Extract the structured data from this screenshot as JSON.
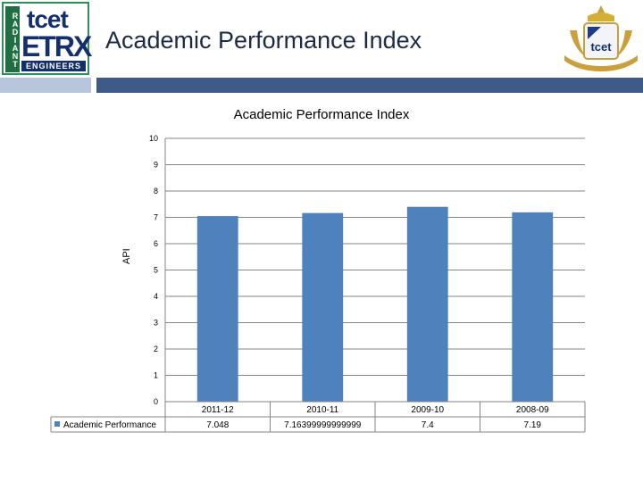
{
  "header": {
    "title": "Academic Performance Index",
    "logo_left": {
      "vertical_text": "RADIANT",
      "brand": "tcet",
      "dept": "ETRX",
      "tagline": "ENGINEERS"
    },
    "logo_right": {
      "brand": "tcet"
    }
  },
  "colors": {
    "bar": "#4f81bd",
    "header_bar_dark": "#3e5a87",
    "header_bar_light": "#b8c6dd"
  },
  "chart_data": {
    "type": "bar",
    "title": "Academic Performance Index",
    "ylabel": "API",
    "xlabel": "",
    "ylim": [
      0,
      10
    ],
    "yticks": [
      "0",
      "1",
      "2",
      "3",
      "4",
      "5",
      "6",
      "7",
      "8",
      "9",
      "10"
    ],
    "grid": true,
    "legend_position": "bottom-left",
    "categories": [
      "2011-12",
      "2010-11",
      "2009-10",
      "2008-09"
    ],
    "series": [
      {
        "name": "Academic Performance",
        "values": [
          7.048,
          7.16399999999999,
          7.4,
          7.19
        ],
        "value_labels": [
          "7.048",
          "7.16399999999999",
          "7.4",
          "7.19"
        ]
      }
    ]
  }
}
